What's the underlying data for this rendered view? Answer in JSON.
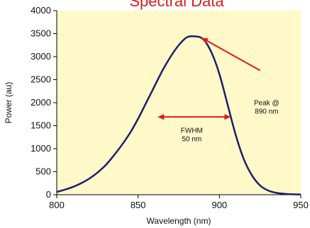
{
  "chart_data": {
    "type": "line",
    "title": "Spectral Data",
    "xlabel": "Wavelength (nm)",
    "ylabel": "Power (au)",
    "xlim": [
      800,
      950
    ],
    "ylim": [
      0,
      4000
    ],
    "x_ticks": [
      800,
      850,
      900,
      950
    ],
    "y_ticks": [
      0,
      500,
      1000,
      1500,
      2000,
      2500,
      3000,
      3500,
      4000
    ],
    "grid": false,
    "legend": "none",
    "plot_background": "#fff8c8",
    "line_color": "#1b1f6b",
    "series": [
      {
        "x": [
          800,
          805,
          810,
          815,
          820,
          825,
          830,
          835,
          840,
          845,
          850,
          855,
          860,
          865,
          870,
          875,
          880,
          885,
          890,
          895,
          900,
          905,
          910,
          915,
          920,
          925,
          930,
          935,
          940,
          945,
          950
        ],
        "values": [
          60,
          110,
          170,
          250,
          350,
          480,
          640,
          850,
          1080,
          1340,
          1650,
          2000,
          2350,
          2700,
          3000,
          3250,
          3420,
          3440,
          3380,
          3100,
          2620,
          1960,
          1300,
          770,
          420,
          200,
          90,
          40,
          20,
          10,
          5
        ]
      }
    ],
    "annotations": [
      {
        "type": "arrow",
        "label_lines": [
          "Peak @",
          "890 nm"
        ],
        "label_at": [
          929,
          1950
        ],
        "from": [
          925,
          2700
        ],
        "to": [
          889,
          3410
        ]
      },
      {
        "type": "double-arrow",
        "label_lines": [
          "FWHM",
          "50 nm"
        ],
        "label_at": [
          883,
          1350
        ],
        "from": [
          862,
          1690
        ],
        "to": [
          907,
          1690
        ]
      }
    ],
    "annotation_color": "#dd1c1c"
  }
}
